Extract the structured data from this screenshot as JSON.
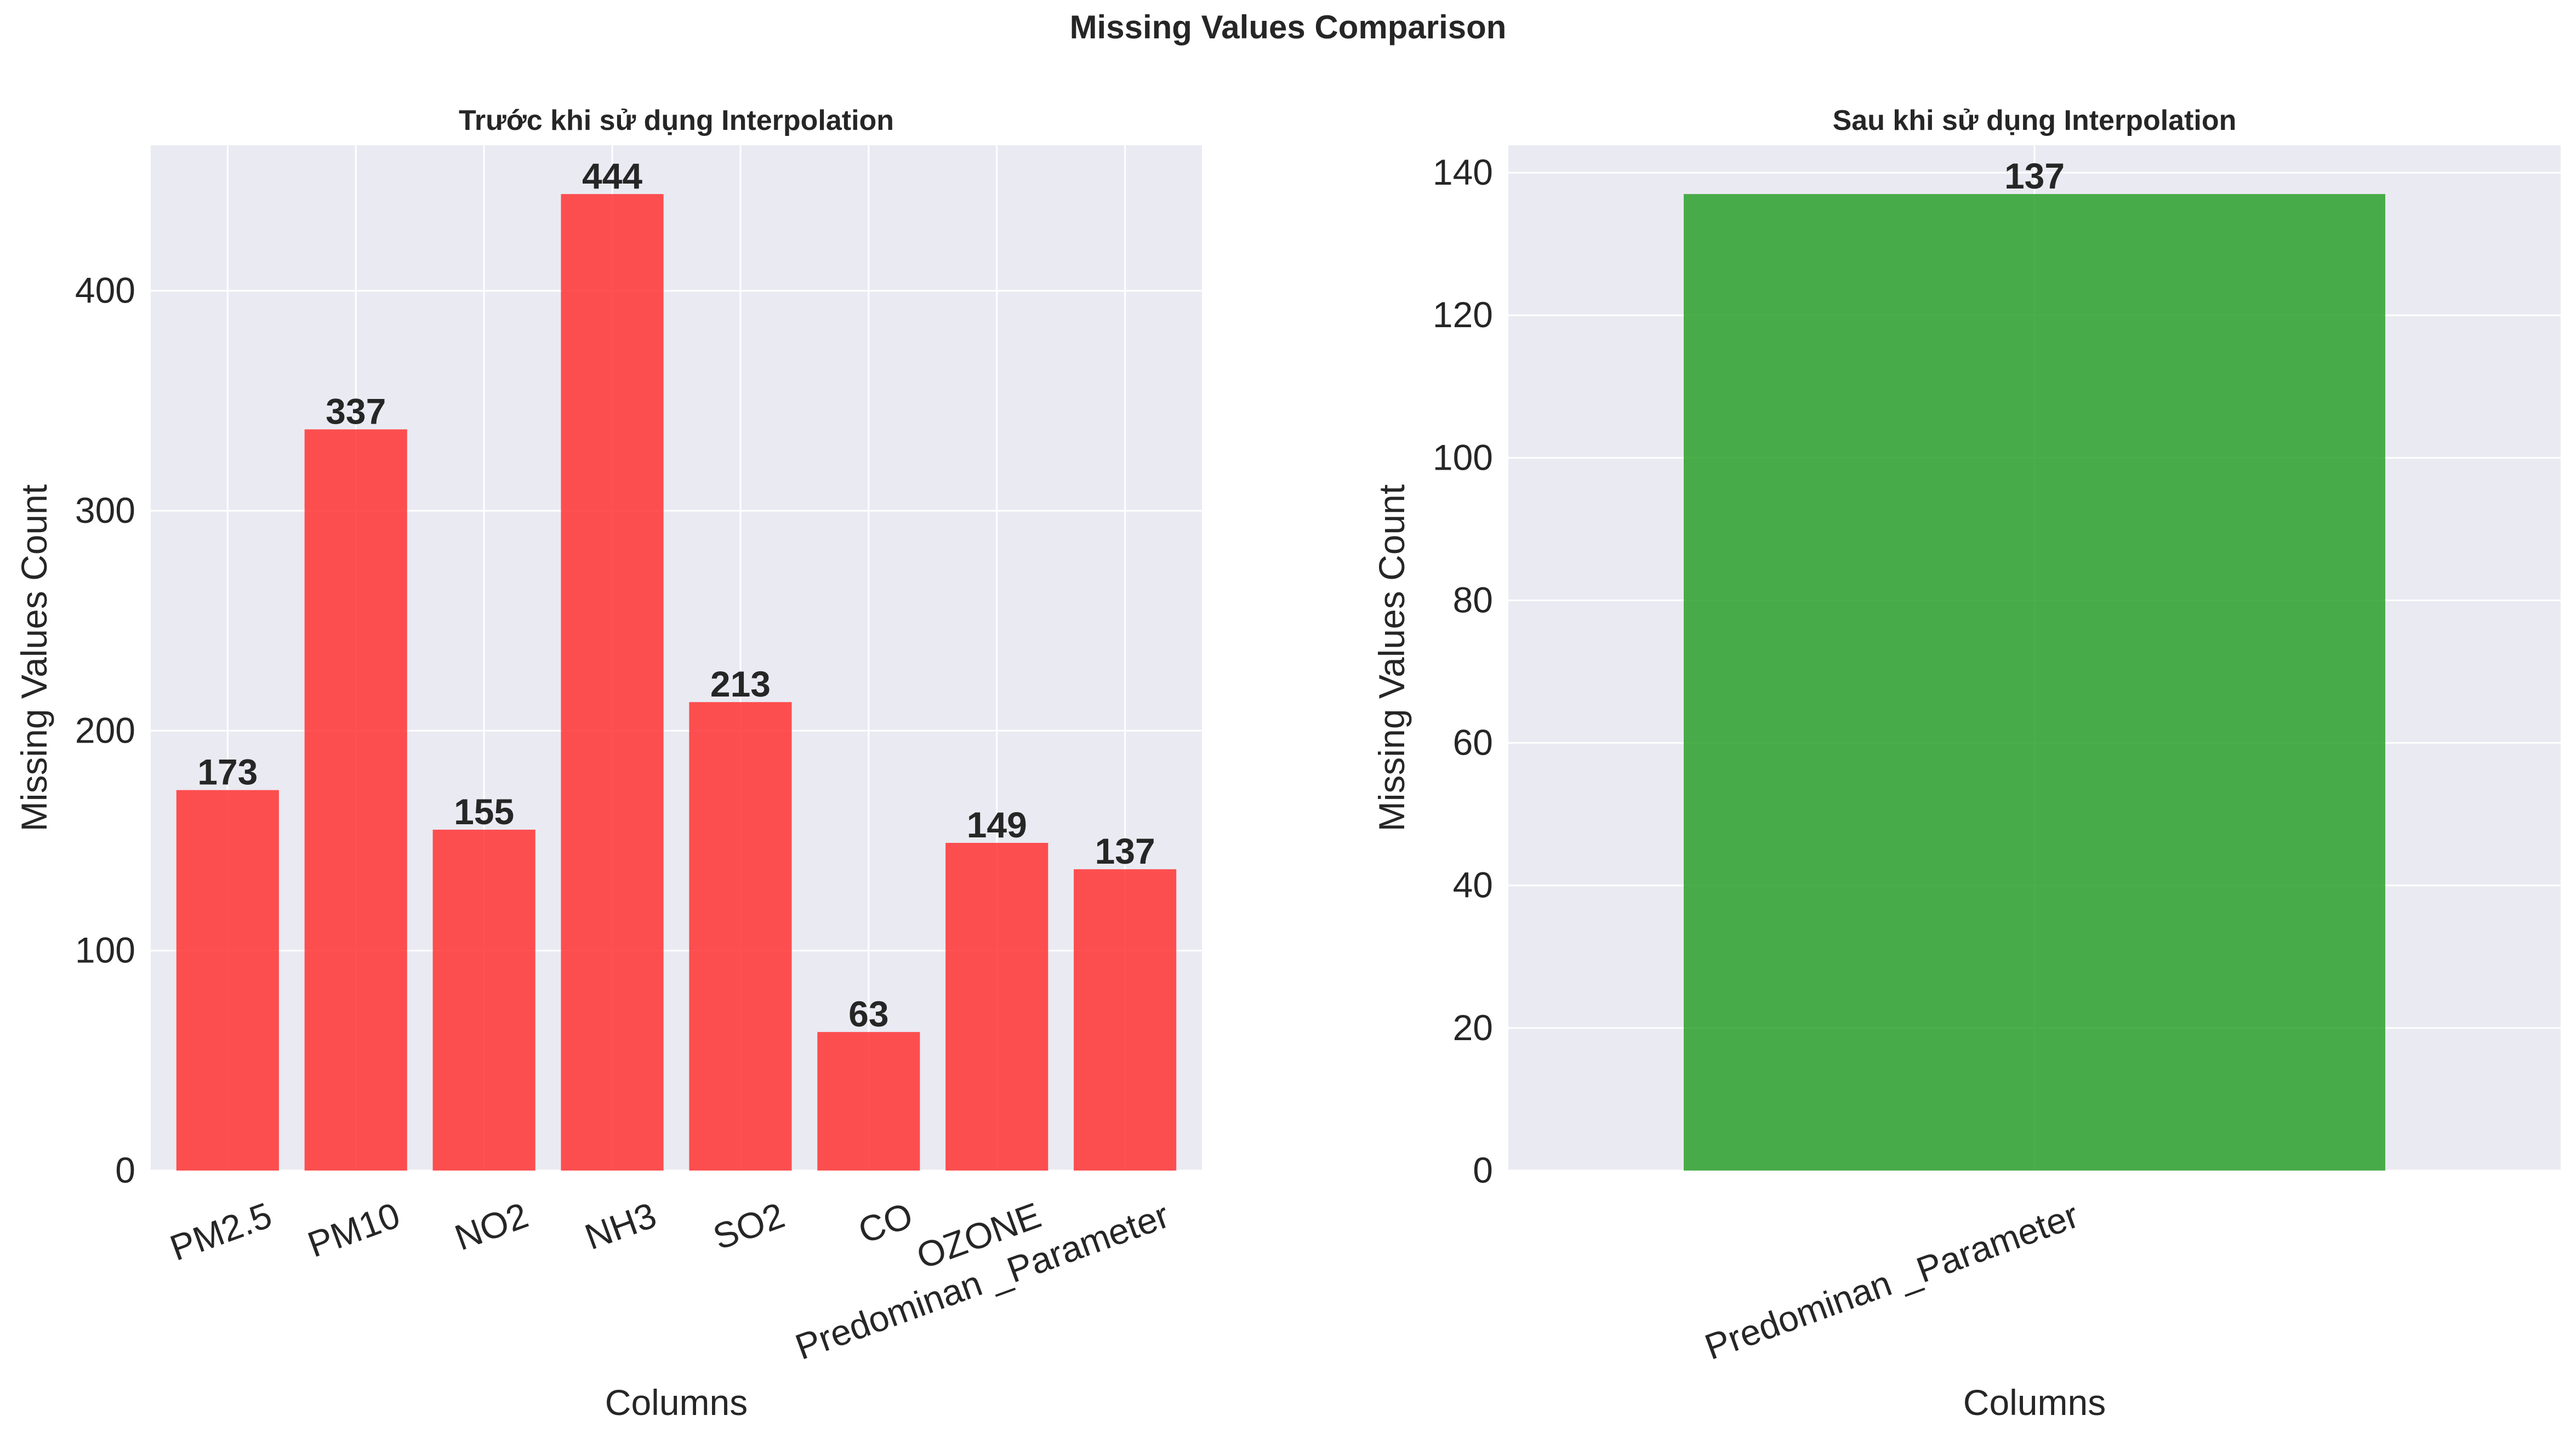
{
  "figure": {
    "title": "Missing Values Comparison"
  },
  "chart_data": [
    {
      "type": "bar",
      "title": "Trước khi sử dụng Interpolation",
      "xlabel": "Columns",
      "ylabel": "Missing Values Count",
      "categories": [
        "PM2.5",
        "PM10",
        "NO2",
        "NH3",
        "SO2",
        "CO",
        "OZONE",
        "Predominan _Parameter"
      ],
      "values": [
        173,
        337,
        155,
        444,
        213,
        63,
        149,
        137
      ],
      "data_labels": [
        "173",
        "337",
        "155",
        "444",
        "213",
        "63",
        "149",
        "137"
      ],
      "ylim": [
        0,
        466.2
      ],
      "yticks": [
        0,
        100,
        200,
        300,
        400
      ],
      "grid": true,
      "color": "#ff3333",
      "background": "#eaeaf2"
    },
    {
      "type": "bar",
      "title": "Sau khi sử dụng Interpolation",
      "xlabel": "Columns",
      "ylabel": "Missing Values Count",
      "categories": [
        "Predominan _Parameter"
      ],
      "values": [
        137
      ],
      "data_labels": [
        "137"
      ],
      "ylim": [
        0,
        143.85
      ],
      "yticks": [
        0,
        20,
        40,
        60,
        80,
        100,
        120,
        140
      ],
      "grid": true,
      "color": "#2ca02c",
      "background": "#eaeaf2"
    }
  ]
}
